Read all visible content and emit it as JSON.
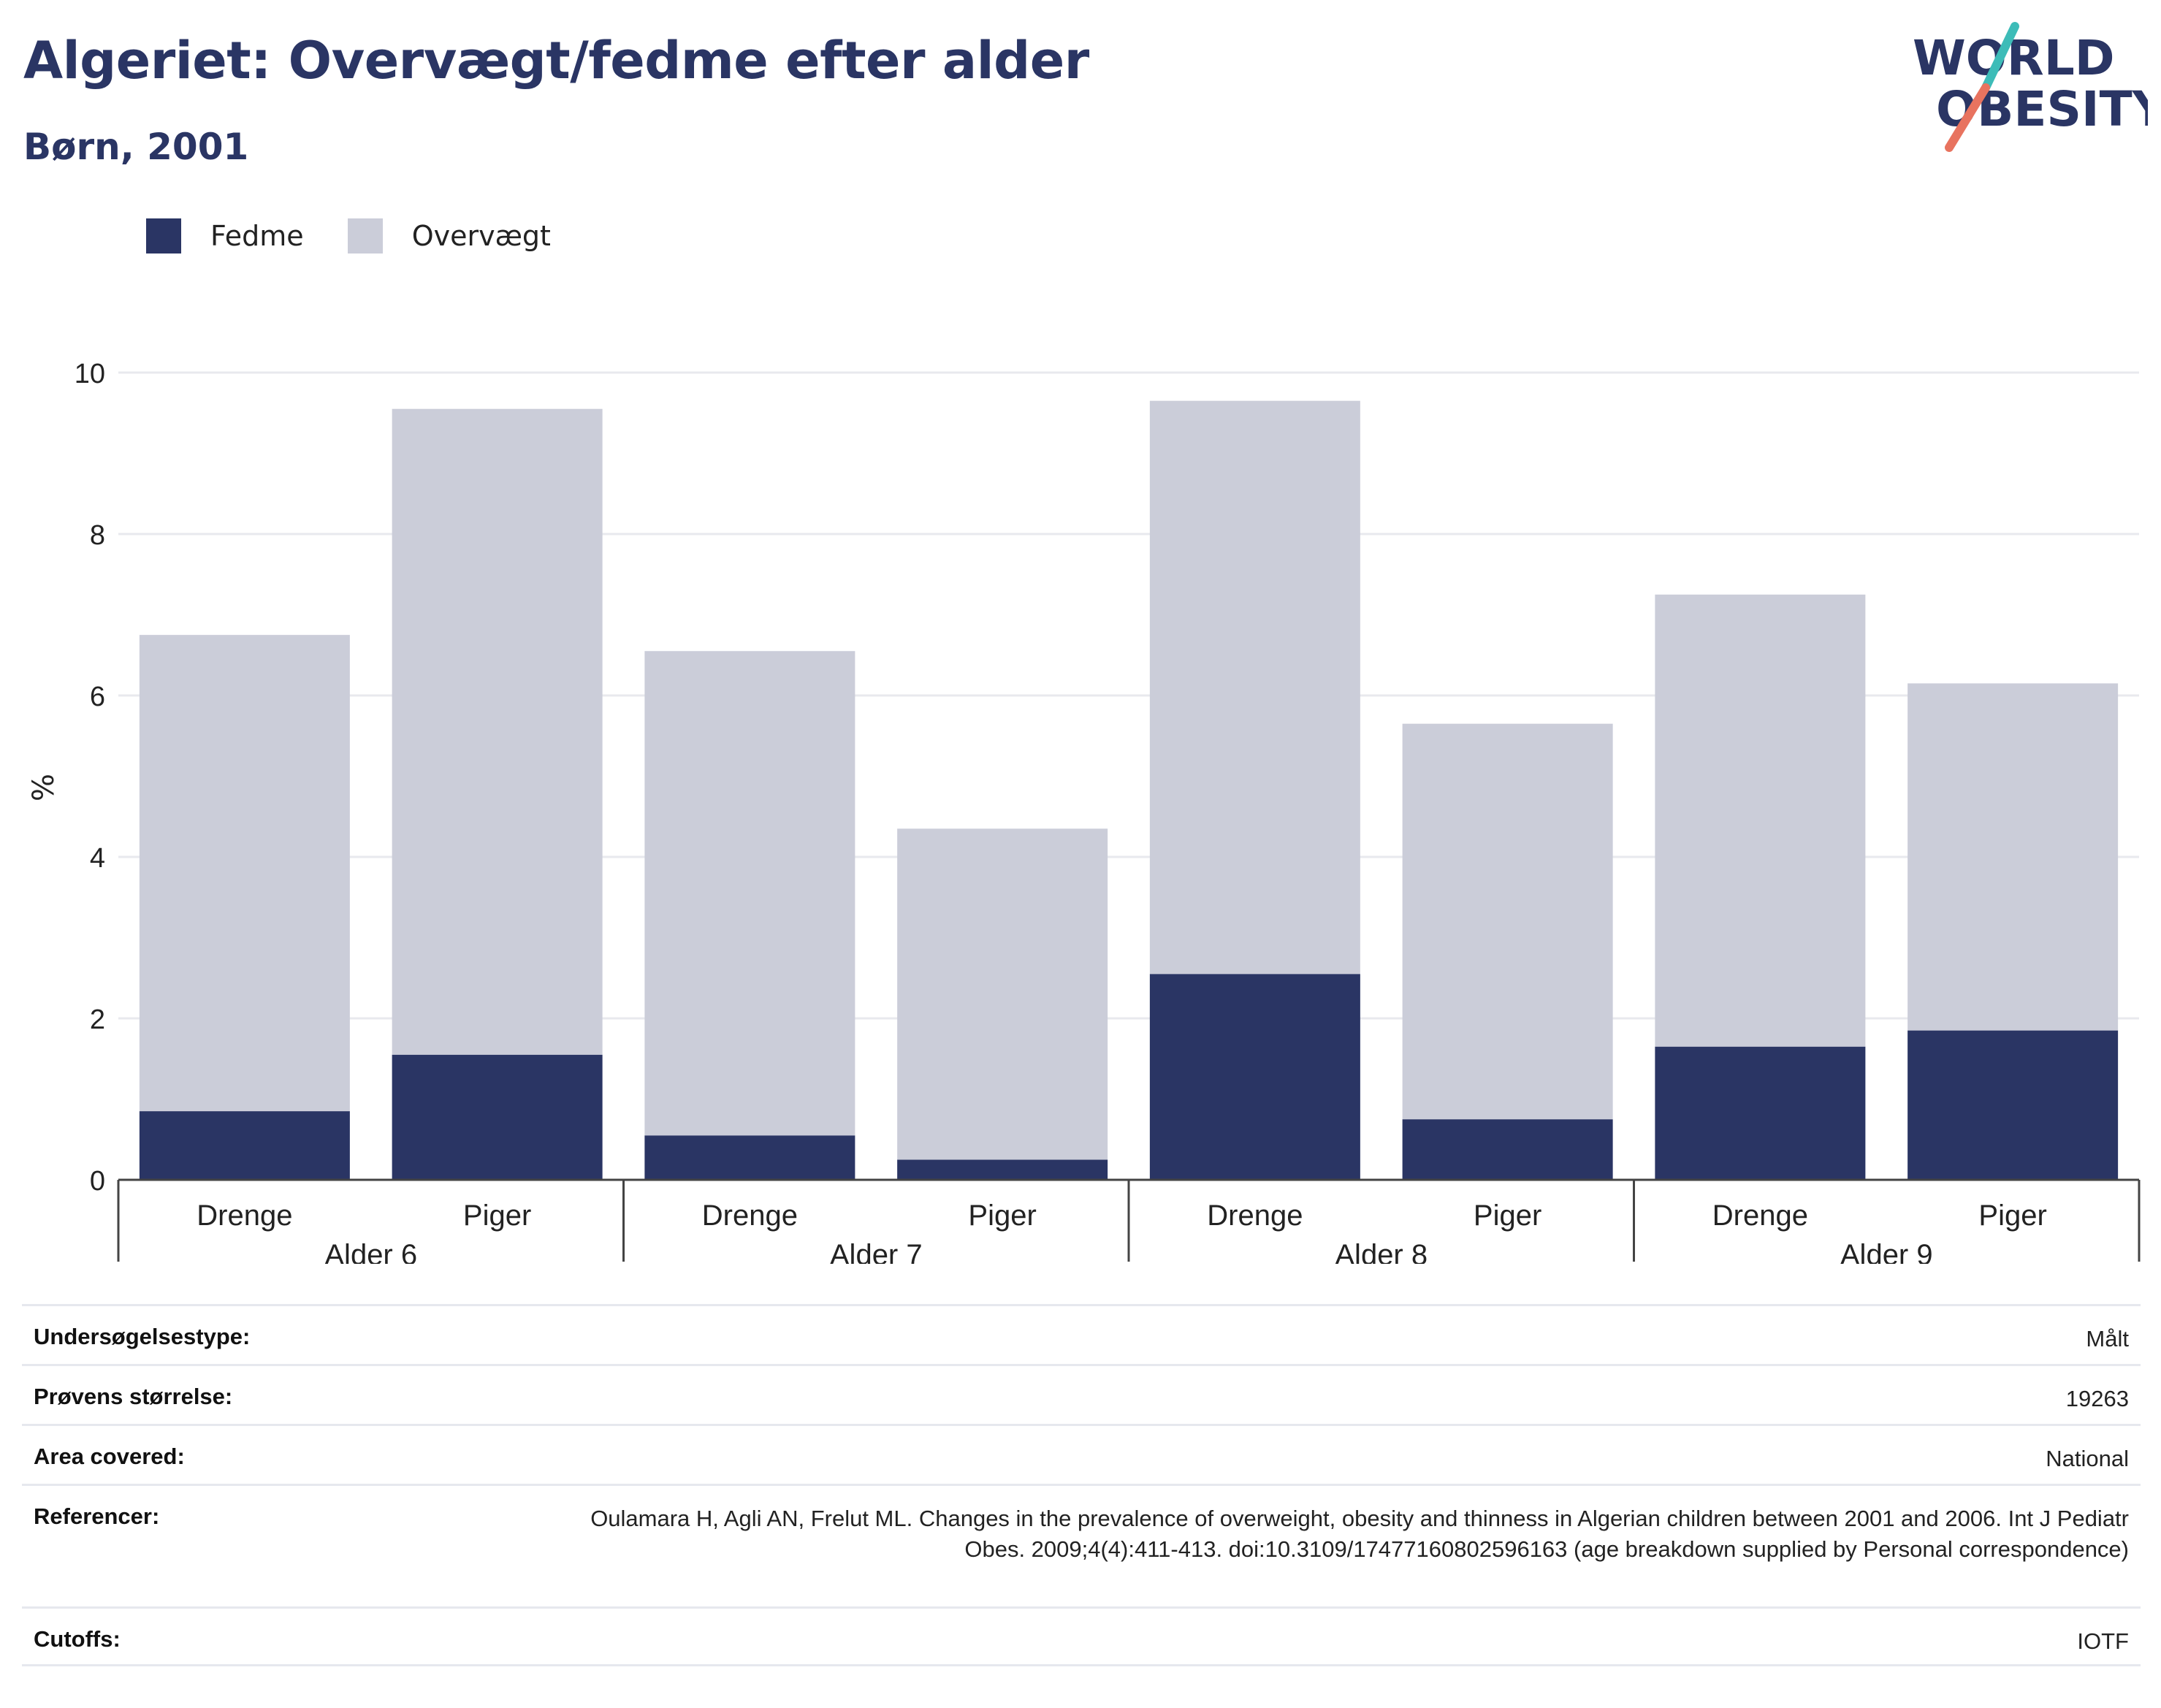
{
  "header": {
    "title": "Algeriet: Overvægt/fedme efter alder",
    "subtitle": "Børn, 2001",
    "logo_line1": "WORLD",
    "logo_line2": "OBESITY"
  },
  "colors": {
    "fedme": "#2a3564",
    "overvaegt": "#cbcdd9",
    "accent_teal": "#3dbcb8",
    "accent_coral": "#e8735f"
  },
  "chart_data": {
    "type": "bar",
    "stacked": true,
    "title": "Algeriet: Overvægt/fedme efter alder",
    "subtitle": "Børn, 2001",
    "ylabel": "%",
    "ylim": [
      0,
      10
    ],
    "yticks": [
      0,
      2,
      4,
      6,
      8,
      10
    ],
    "grid": true,
    "legend_position": "top-left",
    "groups": [
      "Alder 6",
      "Alder 7",
      "Alder 8",
      "Alder 9"
    ],
    "categories": [
      "Drenge",
      "Piger",
      "Drenge",
      "Piger",
      "Drenge",
      "Piger",
      "Drenge",
      "Piger"
    ],
    "series": [
      {
        "name": "Fedme",
        "values": [
          0.85,
          1.55,
          0.55,
          0.25,
          2.55,
          0.75,
          1.65,
          1.85
        ]
      },
      {
        "name": "Overvægt",
        "values": [
          5.9,
          8.0,
          6.0,
          4.1,
          7.1,
          4.9,
          5.6,
          4.3
        ]
      }
    ]
  },
  "info_table": [
    {
      "label": "Undersøgelsestype:",
      "value": "Målt"
    },
    {
      "label": "Prøvens størrelse:",
      "value": "19263"
    },
    {
      "label": "Area covered:",
      "value": "National"
    },
    {
      "label": "Referencer:",
      "value": "Oulamara H, Agli AN, Frelut ML. Changes in the prevalence of overweight, obesity and thinness in Algerian children between 2001 and 2006. Int J Pediatr Obes. 2009;4(4):411-413. doi:10.3109/17477160802596163 (age breakdown supplied by Personal correspondence)"
    },
    {
      "label": "Cutoffs:",
      "value": "IOTF"
    }
  ]
}
